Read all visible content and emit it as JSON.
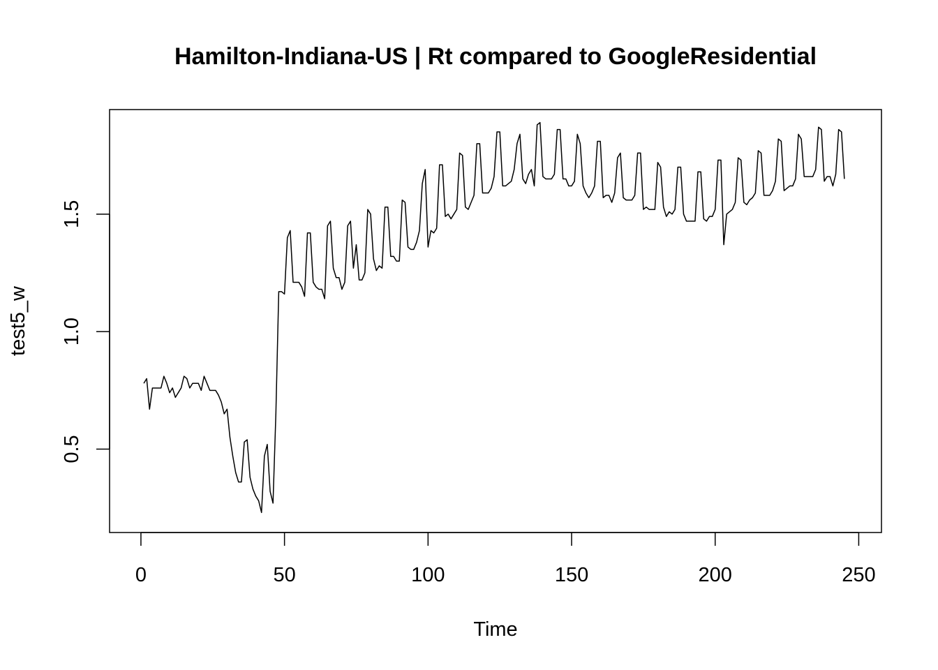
{
  "chart_data": {
    "type": "line",
    "title": "Hamilton-Indiana-US | Rt compared to GoogleResidential",
    "xlabel": "Time",
    "ylabel": "test5_w",
    "xlim": [
      -10.92,
      257.92
    ],
    "ylim": [
      0.145,
      1.945
    ],
    "x_ticks": [
      0,
      50,
      100,
      150,
      200,
      250
    ],
    "x_tick_labels": [
      "0",
      "50",
      "100",
      "150",
      "200",
      "250"
    ],
    "y_ticks": [
      0.5,
      1.0,
      1.5
    ],
    "y_tick_labels": [
      "0.5",
      "1.0",
      "1.5"
    ],
    "grid": false,
    "legend": "none",
    "line_color": "#000000",
    "series": [
      {
        "x_start": 1,
        "values": [
          0.78,
          0.8,
          0.67,
          0.76,
          0.76,
          0.76,
          0.76,
          0.81,
          0.78,
          0.74,
          0.76,
          0.72,
          0.74,
          0.76,
          0.81,
          0.8,
          0.76,
          0.78,
          0.78,
          0.78,
          0.75,
          0.81,
          0.78,
          0.75,
          0.75,
          0.75,
          0.73,
          0.7,
          0.65,
          0.67,
          0.55,
          0.47,
          0.4,
          0.36,
          0.36,
          0.53,
          0.54,
          0.38,
          0.33,
          0.3,
          0.28,
          0.23,
          0.47,
          0.52,
          0.32,
          0.27,
          0.65,
          1.17,
          1.17,
          1.16,
          1.4,
          1.43,
          1.21,
          1.21,
          1.21,
          1.19,
          1.15,
          1.42,
          1.42,
          1.21,
          1.19,
          1.18,
          1.18,
          1.14,
          1.45,
          1.47,
          1.27,
          1.23,
          1.23,
          1.18,
          1.21,
          1.45,
          1.47,
          1.27,
          1.37,
          1.22,
          1.22,
          1.25,
          1.52,
          1.5,
          1.31,
          1.26,
          1.28,
          1.27,
          1.53,
          1.53,
          1.32,
          1.32,
          1.3,
          1.3,
          1.56,
          1.55,
          1.36,
          1.35,
          1.35,
          1.38,
          1.43,
          1.63,
          1.69,
          1.36,
          1.43,
          1.42,
          1.44,
          1.71,
          1.71,
          1.49,
          1.5,
          1.48,
          1.5,
          1.52,
          1.76,
          1.75,
          1.53,
          1.52,
          1.55,
          1.58,
          1.8,
          1.8,
          1.59,
          1.59,
          1.59,
          1.61,
          1.66,
          1.85,
          1.85,
          1.62,
          1.62,
          1.63,
          1.64,
          1.69,
          1.8,
          1.84,
          1.65,
          1.63,
          1.67,
          1.69,
          1.62,
          1.88,
          1.89,
          1.66,
          1.65,
          1.65,
          1.65,
          1.67,
          1.86,
          1.86,
          1.65,
          1.65,
          1.62,
          1.62,
          1.64,
          1.84,
          1.8,
          1.62,
          1.59,
          1.57,
          1.59,
          1.62,
          1.81,
          1.81,
          1.57,
          1.58,
          1.58,
          1.55,
          1.59,
          1.74,
          1.76,
          1.57,
          1.56,
          1.56,
          1.56,
          1.58,
          1.76,
          1.76,
          1.52,
          1.53,
          1.52,
          1.52,
          1.52,
          1.72,
          1.7,
          1.53,
          1.49,
          1.51,
          1.5,
          1.52,
          1.7,
          1.7,
          1.5,
          1.47,
          1.47,
          1.47,
          1.47,
          1.68,
          1.68,
          1.48,
          1.47,
          1.49,
          1.49,
          1.52,
          1.73,
          1.73,
          1.37,
          1.5,
          1.51,
          1.52,
          1.55,
          1.74,
          1.73,
          1.55,
          1.54,
          1.56,
          1.57,
          1.59,
          1.77,
          1.76,
          1.58,
          1.58,
          1.58,
          1.6,
          1.64,
          1.82,
          1.81,
          1.6,
          1.61,
          1.62,
          1.62,
          1.65,
          1.84,
          1.82,
          1.66,
          1.66,
          1.66,
          1.66,
          1.69,
          1.87,
          1.86,
          1.64,
          1.66,
          1.66,
          1.62,
          1.67,
          1.86,
          1.85,
          1.65
        ]
      }
    ]
  }
}
